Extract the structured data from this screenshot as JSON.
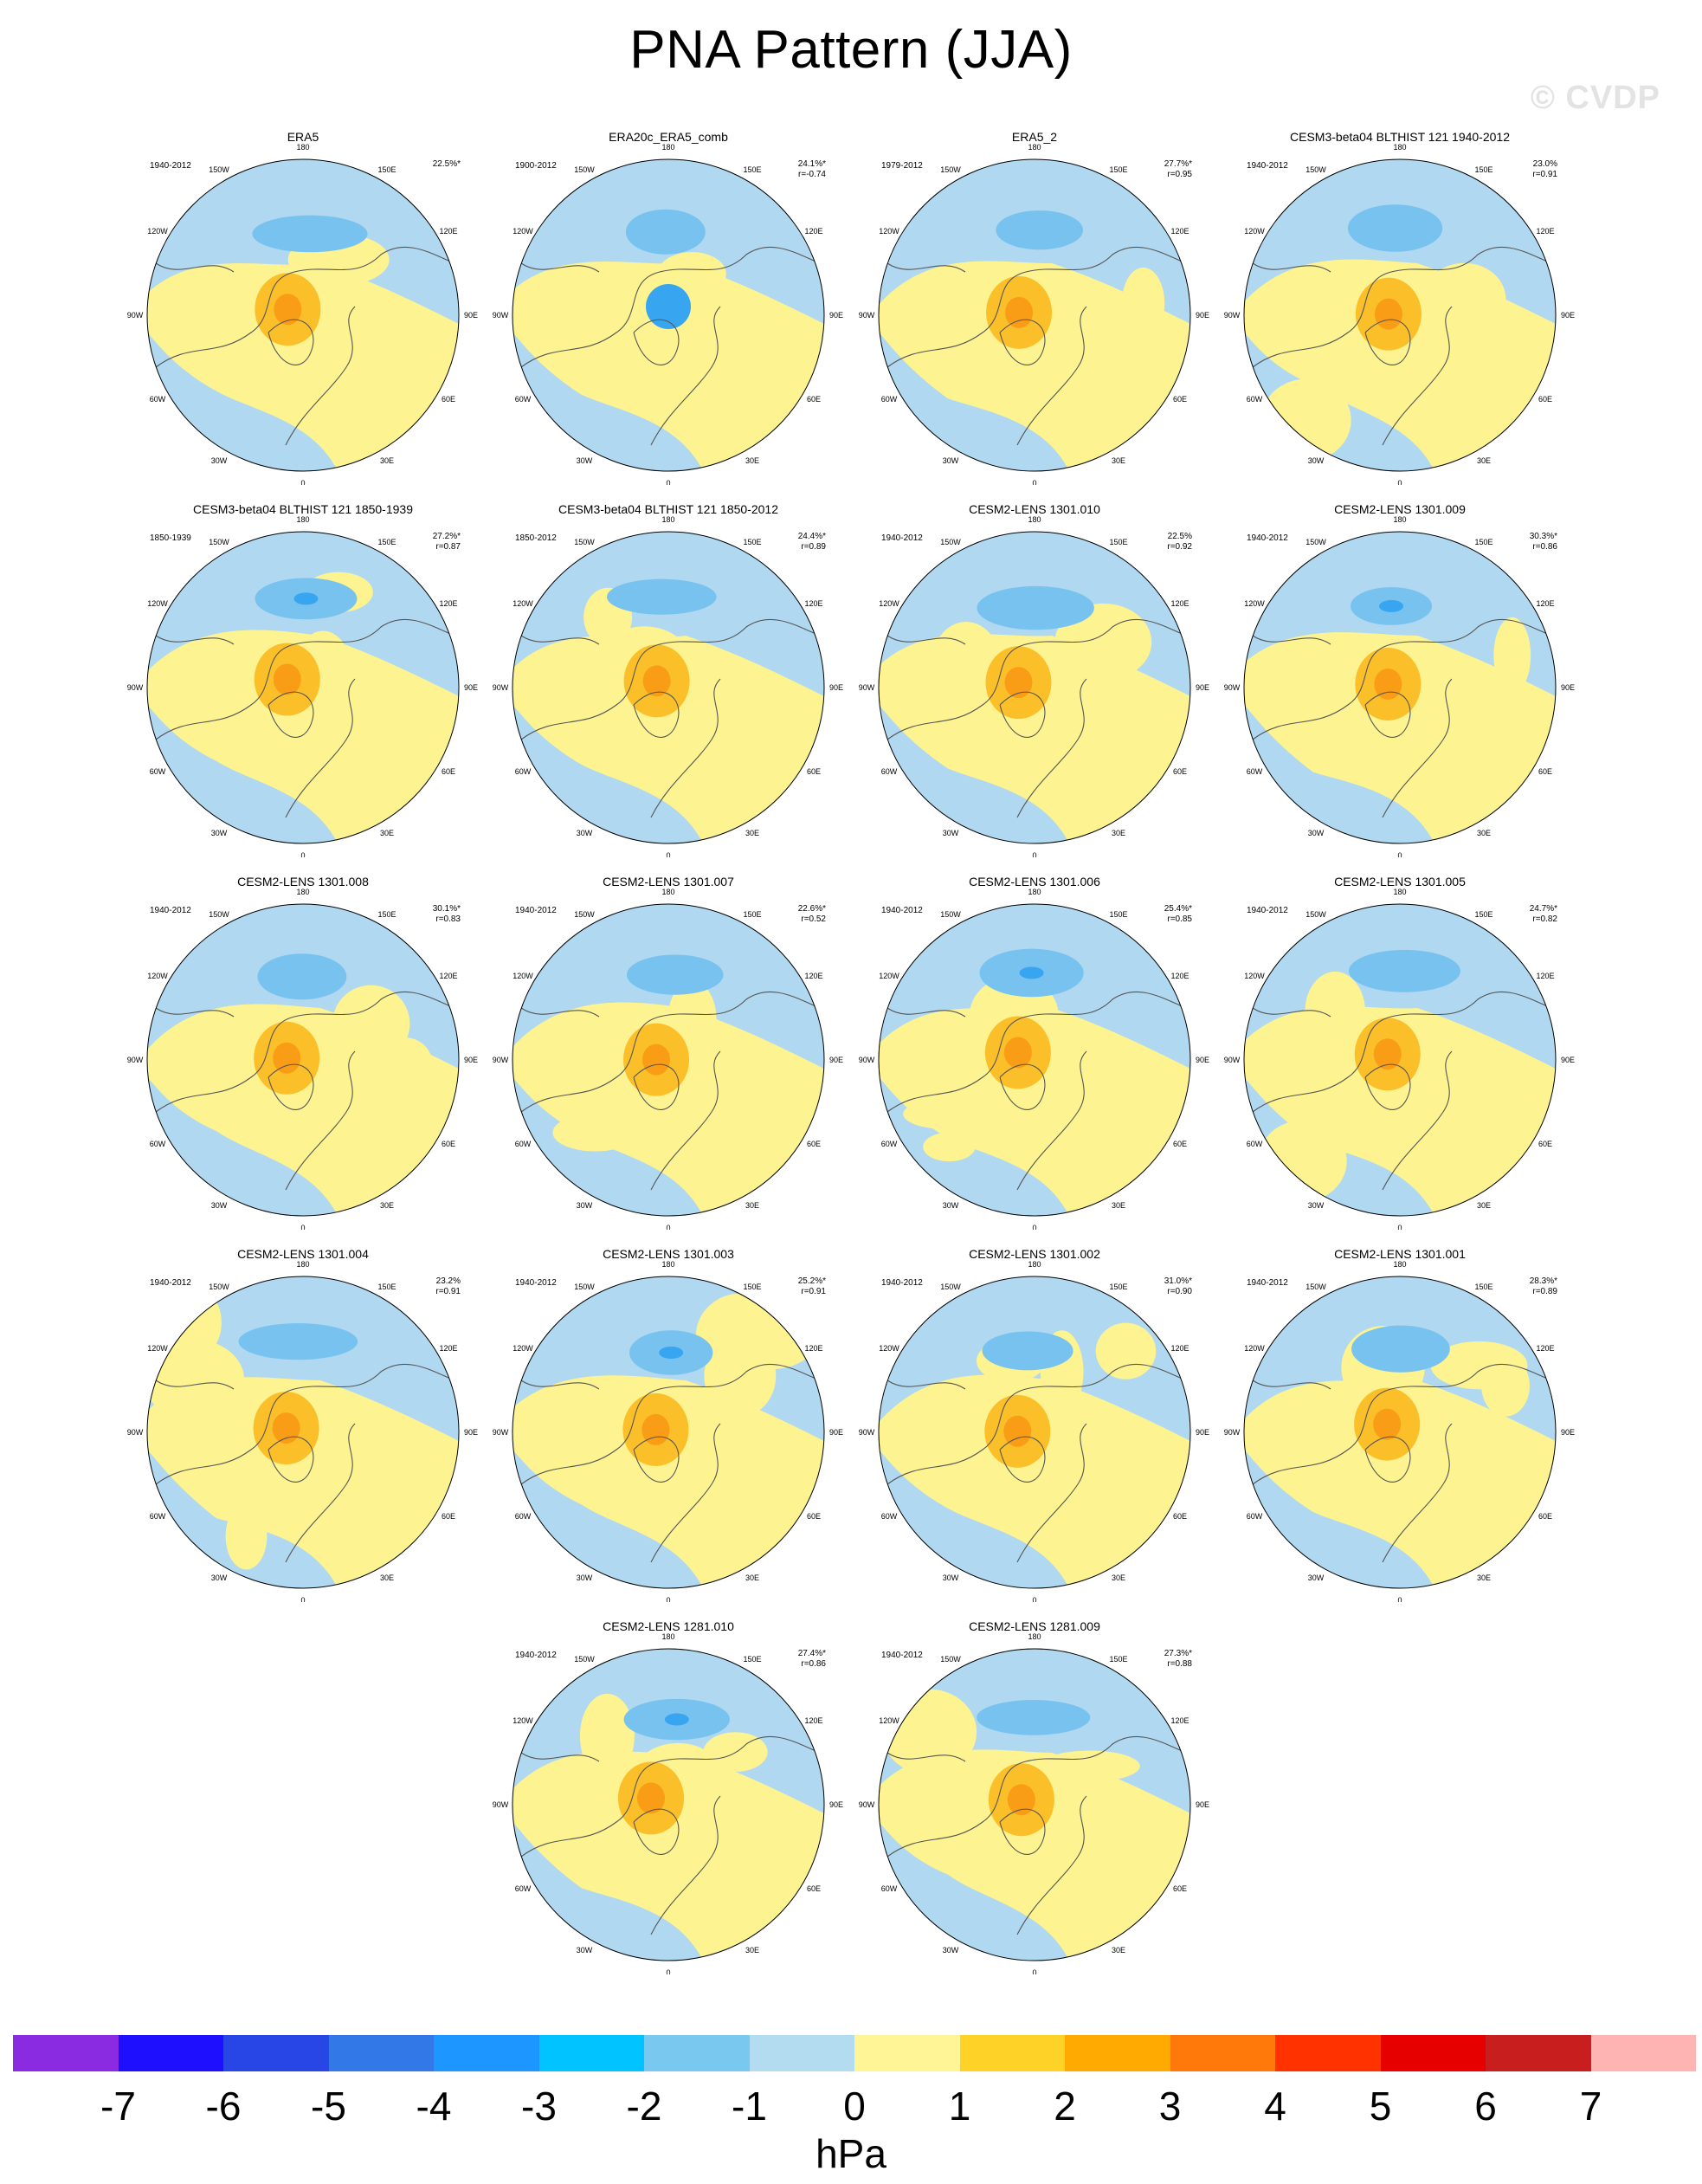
{
  "title": "PNA Pattern (JJA)",
  "watermark": "© CVDP",
  "colors": {
    "ocean_blue": "#b0d8f0",
    "positive_yellow": "#fdf391",
    "positive_orange": "#fbbf2a",
    "positive_deep": "#f99d16",
    "negative_blue": "#78c2f0",
    "negative_deep": "#38a5f0",
    "coast": "#555555"
  },
  "longitude_labels": [
    "180",
    "150E",
    "120E",
    "90E",
    "60E",
    "30E",
    "0",
    "30W",
    "60W",
    "90W",
    "120W",
    "150W"
  ],
  "panels": [
    {
      "title": "ERA5",
      "period": "1940-2012",
      "pct": "22.5%*",
      "r": ""
    },
    {
      "title": "ERA20c_ERA5_comb",
      "period": "1900-2012",
      "pct": "24.1%*",
      "r": "r=-0.74"
    },
    {
      "title": "ERA5_2",
      "period": "1979-2012",
      "pct": "27.7%*",
      "r": "r=0.95"
    },
    {
      "title": "CESM3-beta04 BLTHIST 121 1940-2012",
      "period": "1940-2012",
      "pct": "23.0%",
      "r": "r=0.91"
    },
    {
      "title": "CESM3-beta04 BLTHIST 121 1850-1939",
      "period": "1850-1939",
      "pct": "27.2%*",
      "r": "r=0.87"
    },
    {
      "title": "CESM3-beta04 BLTHIST 121 1850-2012",
      "period": "1850-2012",
      "pct": "24.4%*",
      "r": "r=0.89"
    },
    {
      "title": "CESM2-LENS 1301.010",
      "period": "1940-2012",
      "pct": "22.5%",
      "r": "r=0.92"
    },
    {
      "title": "CESM2-LENS 1301.009",
      "period": "1940-2012",
      "pct": "30.3%*",
      "r": "r=0.86"
    },
    {
      "title": "CESM2-LENS 1301.008",
      "period": "1940-2012",
      "pct": "30.1%*",
      "r": "r=0.83"
    },
    {
      "title": "CESM2-LENS 1301.007",
      "period": "1940-2012",
      "pct": "22.6%*",
      "r": "r=0.52"
    },
    {
      "title": "CESM2-LENS 1301.006",
      "period": "1940-2012",
      "pct": "25.4%*",
      "r": "r=0.85"
    },
    {
      "title": "CESM2-LENS 1301.005",
      "period": "1940-2012",
      "pct": "24.7%*",
      "r": "r=0.82"
    },
    {
      "title": "CESM2-LENS 1301.004",
      "period": "1940-2012",
      "pct": "23.2%",
      "r": "r=0.91"
    },
    {
      "title": "CESM2-LENS 1301.003",
      "period": "1940-2012",
      "pct": "25.2%*",
      "r": "r=0.91"
    },
    {
      "title": "CESM2-LENS 1301.002",
      "period": "1940-2012",
      "pct": "31.0%*",
      "r": "r=0.90"
    },
    {
      "title": "CESM2-LENS 1301.001",
      "period": "1940-2012",
      "pct": "28.3%*",
      "r": "r=0.89"
    },
    {
      "title": "CESM2-LENS 1281.010",
      "period": "1940-2012",
      "pct": "27.4%*",
      "r": "r=0.86"
    },
    {
      "title": "CESM2-LENS 1281.009",
      "period": "1940-2012",
      "pct": "27.3%*",
      "r": "r=0.88"
    }
  ],
  "colorbar": {
    "colors": [
      "#8a2be2",
      "#1e0fff",
      "#2846e6",
      "#3278e6",
      "#1e96ff",
      "#00c3ff",
      "#78c8f0",
      "#b4dcf0",
      "#fff596",
      "#ffd228",
      "#ffaa00",
      "#ff780a",
      "#ff3200",
      "#e60000",
      "#c81e1e",
      "#ffb4b4"
    ],
    "labels": [
      "-7",
      "-6",
      "-5",
      "-4",
      "-3",
      "-2",
      "-1",
      "0",
      "1",
      "2",
      "3",
      "4",
      "5",
      "6",
      "7"
    ],
    "unit": "hPa"
  }
}
